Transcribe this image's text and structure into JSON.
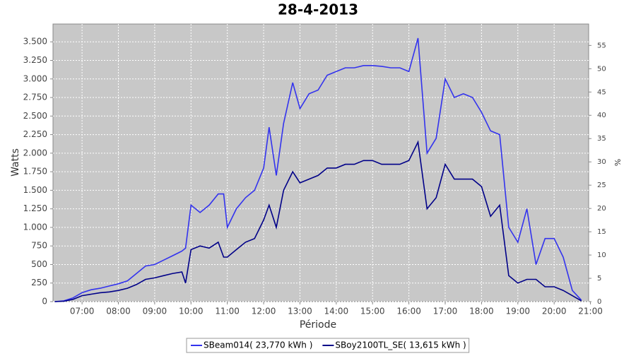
{
  "chart_data": {
    "type": "line",
    "title": "28-4-2013",
    "xlabel": "Période",
    "ylabel": "Watts",
    "y2label": "%",
    "x": [
      6.25,
      6.5,
      6.75,
      7,
      7.25,
      7.5,
      7.75,
      8,
      8.25,
      8.5,
      8.75,
      9,
      9.25,
      9.5,
      9.75,
      9.85,
      10,
      10.25,
      10.5,
      10.75,
      10.9,
      11,
      11.25,
      11.5,
      11.75,
      12,
      12.15,
      12.35,
      12.55,
      12.8,
      13,
      13.25,
      13.5,
      13.75,
      14,
      14.25,
      14.5,
      14.75,
      15,
      15.25,
      15.5,
      15.75,
      16,
      16.25,
      16.5,
      16.75,
      17,
      17.25,
      17.5,
      17.75,
      18,
      18.25,
      18.5,
      18.75,
      19,
      19.25,
      19.5,
      19.75,
      20,
      20.25,
      20.5,
      20.75
    ],
    "series": [
      {
        "name": "SBeam014( 23,770 kWh )",
        "color": "#3333ee",
        "values": [
          0,
          10,
          50,
          120,
          160,
          180,
          210,
          240,
          280,
          380,
          480,
          500,
          560,
          620,
          680,
          720,
          1300,
          1200,
          1300,
          1450,
          1450,
          1000,
          1250,
          1400,
          1500,
          1800,
          2350,
          1700,
          2400,
          2950,
          2600,
          2800,
          2850,
          3050,
          3100,
          3150,
          3150,
          3180,
          3180,
          3170,
          3150,
          3150,
          3100,
          3550,
          2000,
          2200,
          3000,
          2750,
          2800,
          2750,
          2550,
          2300,
          2250,
          1000,
          800,
          1250,
          500,
          850,
          850,
          600,
          150,
          20
        ]
      },
      {
        "name": "SBoy2100TL_SE( 13,615 kWh )",
        "color": "#000088",
        "values": [
          0,
          5,
          30,
          80,
          100,
          120,
          130,
          150,
          180,
          230,
          300,
          320,
          350,
          380,
          400,
          250,
          700,
          750,
          720,
          800,
          600,
          600,
          700,
          800,
          850,
          1100,
          1300,
          1000,
          1500,
          1750,
          1600,
          1650,
          1700,
          1800,
          1800,
          1850,
          1850,
          1900,
          1900,
          1850,
          1850,
          1850,
          1900,
          2150,
          1250,
          1400,
          1850,
          1650,
          1650,
          1650,
          1550,
          1150,
          1300,
          350,
          250,
          300,
          300,
          200,
          200,
          150,
          80,
          10
        ]
      }
    ],
    "xlim": [
      6.2,
      20.95
    ],
    "xticks": [
      {
        "value": 7,
        "label": "07:00"
      },
      {
        "value": 8,
        "label": "08:00"
      },
      {
        "value": 9,
        "label": "09:00"
      },
      {
        "value": 10,
        "label": "10:00"
      },
      {
        "value": 11,
        "label": "11:00"
      },
      {
        "value": 12,
        "label": "12:00"
      },
      {
        "value": 13,
        "label": "13:00"
      },
      {
        "value": 14,
        "label": "14:00"
      },
      {
        "value": 15,
        "label": "15:00"
      },
      {
        "value": 16,
        "label": "16:00"
      },
      {
        "value": 17,
        "label": "17:00"
      },
      {
        "value": 18,
        "label": "18:00"
      },
      {
        "value": 19,
        "label": "19:00"
      },
      {
        "value": 20,
        "label": "20:00"
      },
      {
        "value": 21,
        "label": "21:00"
      }
    ],
    "ylim": [
      0,
      3740
    ],
    "yticks": [
      0,
      250,
      500,
      750,
      {
        "value": 1000,
        "label": "1.000"
      },
      {
        "value": 1250,
        "label": "1.250"
      },
      {
        "value": 1500,
        "label": "1.500"
      },
      {
        "value": 1750,
        "label": "1.750"
      },
      {
        "value": 2000,
        "label": "2.000"
      },
      {
        "value": 2250,
        "label": "2.250"
      },
      {
        "value": 2500,
        "label": "2.500"
      },
      {
        "value": 2750,
        "label": "2.750"
      },
      {
        "value": 3000,
        "label": "3.000"
      },
      {
        "value": 3250,
        "label": "3.250"
      },
      {
        "value": 3500,
        "label": "3.500"
      }
    ],
    "y2lim": [
      0,
      59.6
    ],
    "y2ticks": [
      0,
      5,
      10,
      15,
      20,
      25,
      30,
      35,
      40,
      45,
      50,
      55
    ],
    "grid": true,
    "legend": "bottom"
  }
}
